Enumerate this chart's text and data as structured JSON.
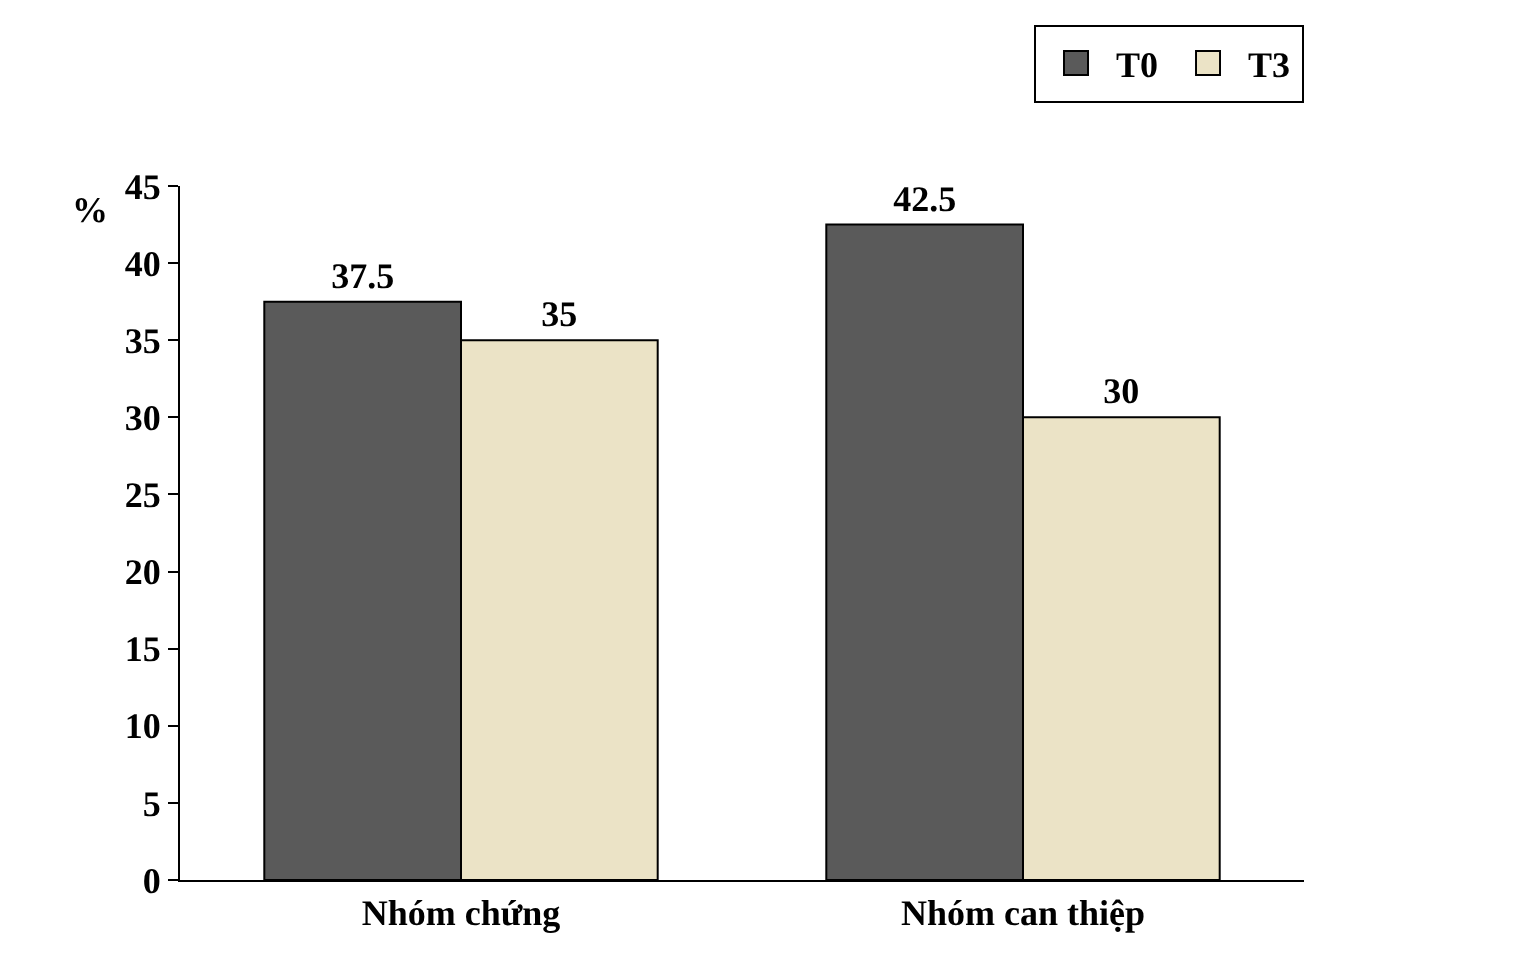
{
  "chart_data": {
    "type": "bar",
    "ylabel": "%",
    "categories": [
      "Nhóm chứng",
      "Nhóm can thiệp"
    ],
    "series": [
      {
        "name": "T0",
        "color": "#5a5a5a",
        "values": [
          37.5,
          42.5
        ]
      },
      {
        "name": "T3",
        "color": "#ebe3c6",
        "values": [
          35,
          30
        ]
      }
    ],
    "ylim": [
      0,
      45
    ],
    "yticks": [
      0,
      5,
      10,
      15,
      20,
      25,
      30,
      35,
      40,
      45
    ],
    "grid": false,
    "legend": "top right",
    "data_labels": true
  }
}
